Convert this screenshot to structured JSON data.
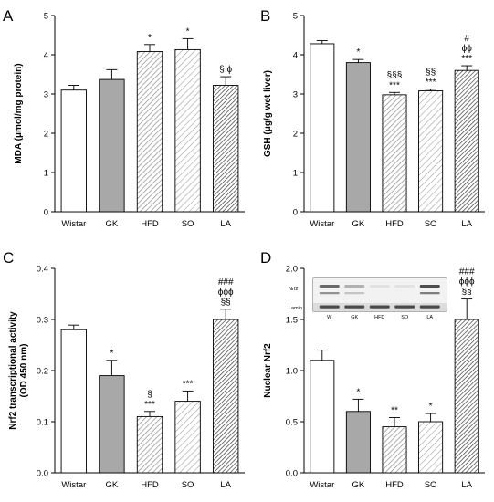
{
  "colors": {
    "white": "#ffffff",
    "gray": "#a8a8a8",
    "hatch_light": "#9a9a9a",
    "hatch_dark": "#555555",
    "axis": "#000000"
  },
  "chart_data": [
    {
      "panel": "A",
      "type": "bar",
      "categories": [
        "Wistar",
        "GK",
        "HFD",
        "SO",
        "LA"
      ],
      "values": [
        3.1,
        3.37,
        4.08,
        4.13,
        3.22
      ],
      "errors": [
        0.12,
        0.25,
        0.18,
        0.28,
        0.22
      ],
      "annotations": [
        "",
        "",
        "*",
        "*",
        "§ ϕ"
      ],
      "patterns": [
        "white",
        "gray",
        "hatch-dense",
        "hatch-sparse",
        "hatch-dark"
      ],
      "ylabel": "MDA (μmol/mg protein)",
      "ylim": [
        0,
        5
      ],
      "yticks": [
        0,
        1,
        2,
        3,
        4,
        5
      ],
      "ytick_labels": [
        "0",
        "1",
        "2",
        "3",
        "4",
        "5"
      ]
    },
    {
      "panel": "B",
      "type": "bar",
      "categories": [
        "Wistar",
        "GK",
        "HFD",
        "SO",
        "LA"
      ],
      "values": [
        4.28,
        3.8,
        2.98,
        3.08,
        3.6
      ],
      "errors": [
        0.08,
        0.08,
        0.06,
        0.04,
        0.12
      ],
      "annotations": [
        "",
        "*",
        "§§§\n***",
        "§§\n***",
        "#\nϕϕ\n***"
      ],
      "patterns": [
        "white",
        "gray",
        "hatch-dense",
        "hatch-sparse",
        "hatch-dark"
      ],
      "ylabel": "GSH (μg/g wet liver)",
      "ylim": [
        0,
        5
      ],
      "yticks": [
        0,
        1,
        2,
        3,
        4,
        5
      ],
      "ytick_labels": [
        "0",
        "1",
        "2",
        "3",
        "4",
        "5"
      ]
    },
    {
      "panel": "C",
      "type": "bar",
      "categories": [
        "Wistar",
        "GK",
        "HFD",
        "SO",
        "LA"
      ],
      "values": [
        0.28,
        0.19,
        0.11,
        0.14,
        0.3
      ],
      "errors": [
        0.009,
        0.03,
        0.01,
        0.02,
        0.02
      ],
      "annotations": [
        "",
        "*",
        "§\n***",
        "***",
        "###\nϕϕϕ\n§§"
      ],
      "patterns": [
        "white",
        "gray",
        "hatch-dense",
        "hatch-sparse",
        "hatch-dark"
      ],
      "ylabel": "Nrf2 transcriptional activity\n(OD 450 nm)",
      "ylim": [
        0,
        0.4
      ],
      "yticks": [
        0,
        0.1,
        0.2,
        0.3,
        0.4
      ],
      "ytick_labels": [
        "0.0",
        "0.1",
        "0.2",
        "0.3",
        "0.4"
      ]
    },
    {
      "panel": "D",
      "type": "bar",
      "categories": [
        "Wistar",
        "GK",
        "HFD",
        "SO",
        "LA"
      ],
      "values": [
        1.1,
        0.6,
        0.45,
        0.5,
        1.5
      ],
      "errors": [
        0.1,
        0.12,
        0.09,
        0.08,
        0.2
      ],
      "annotations": [
        "",
        "*",
        "**",
        "*",
        "###\nϕϕϕ\n§§"
      ],
      "patterns": [
        "white",
        "gray",
        "hatch-dense",
        "hatch-sparse",
        "hatch-dark"
      ],
      "ylabel": "Nuclear Nrf2",
      "ylim": [
        0,
        2
      ],
      "yticks": [
        0,
        0.5,
        1,
        1.5,
        2
      ],
      "ytick_labels": [
        "0.0",
        "0.5",
        "1.0",
        "1.5",
        "2.0"
      ],
      "blot": {
        "row_labels": [
          "Nrf2",
          "Lamin"
        ],
        "lane_labels": [
          "W",
          "GK",
          "HFD",
          "SO",
          "LA"
        ]
      }
    }
  ]
}
